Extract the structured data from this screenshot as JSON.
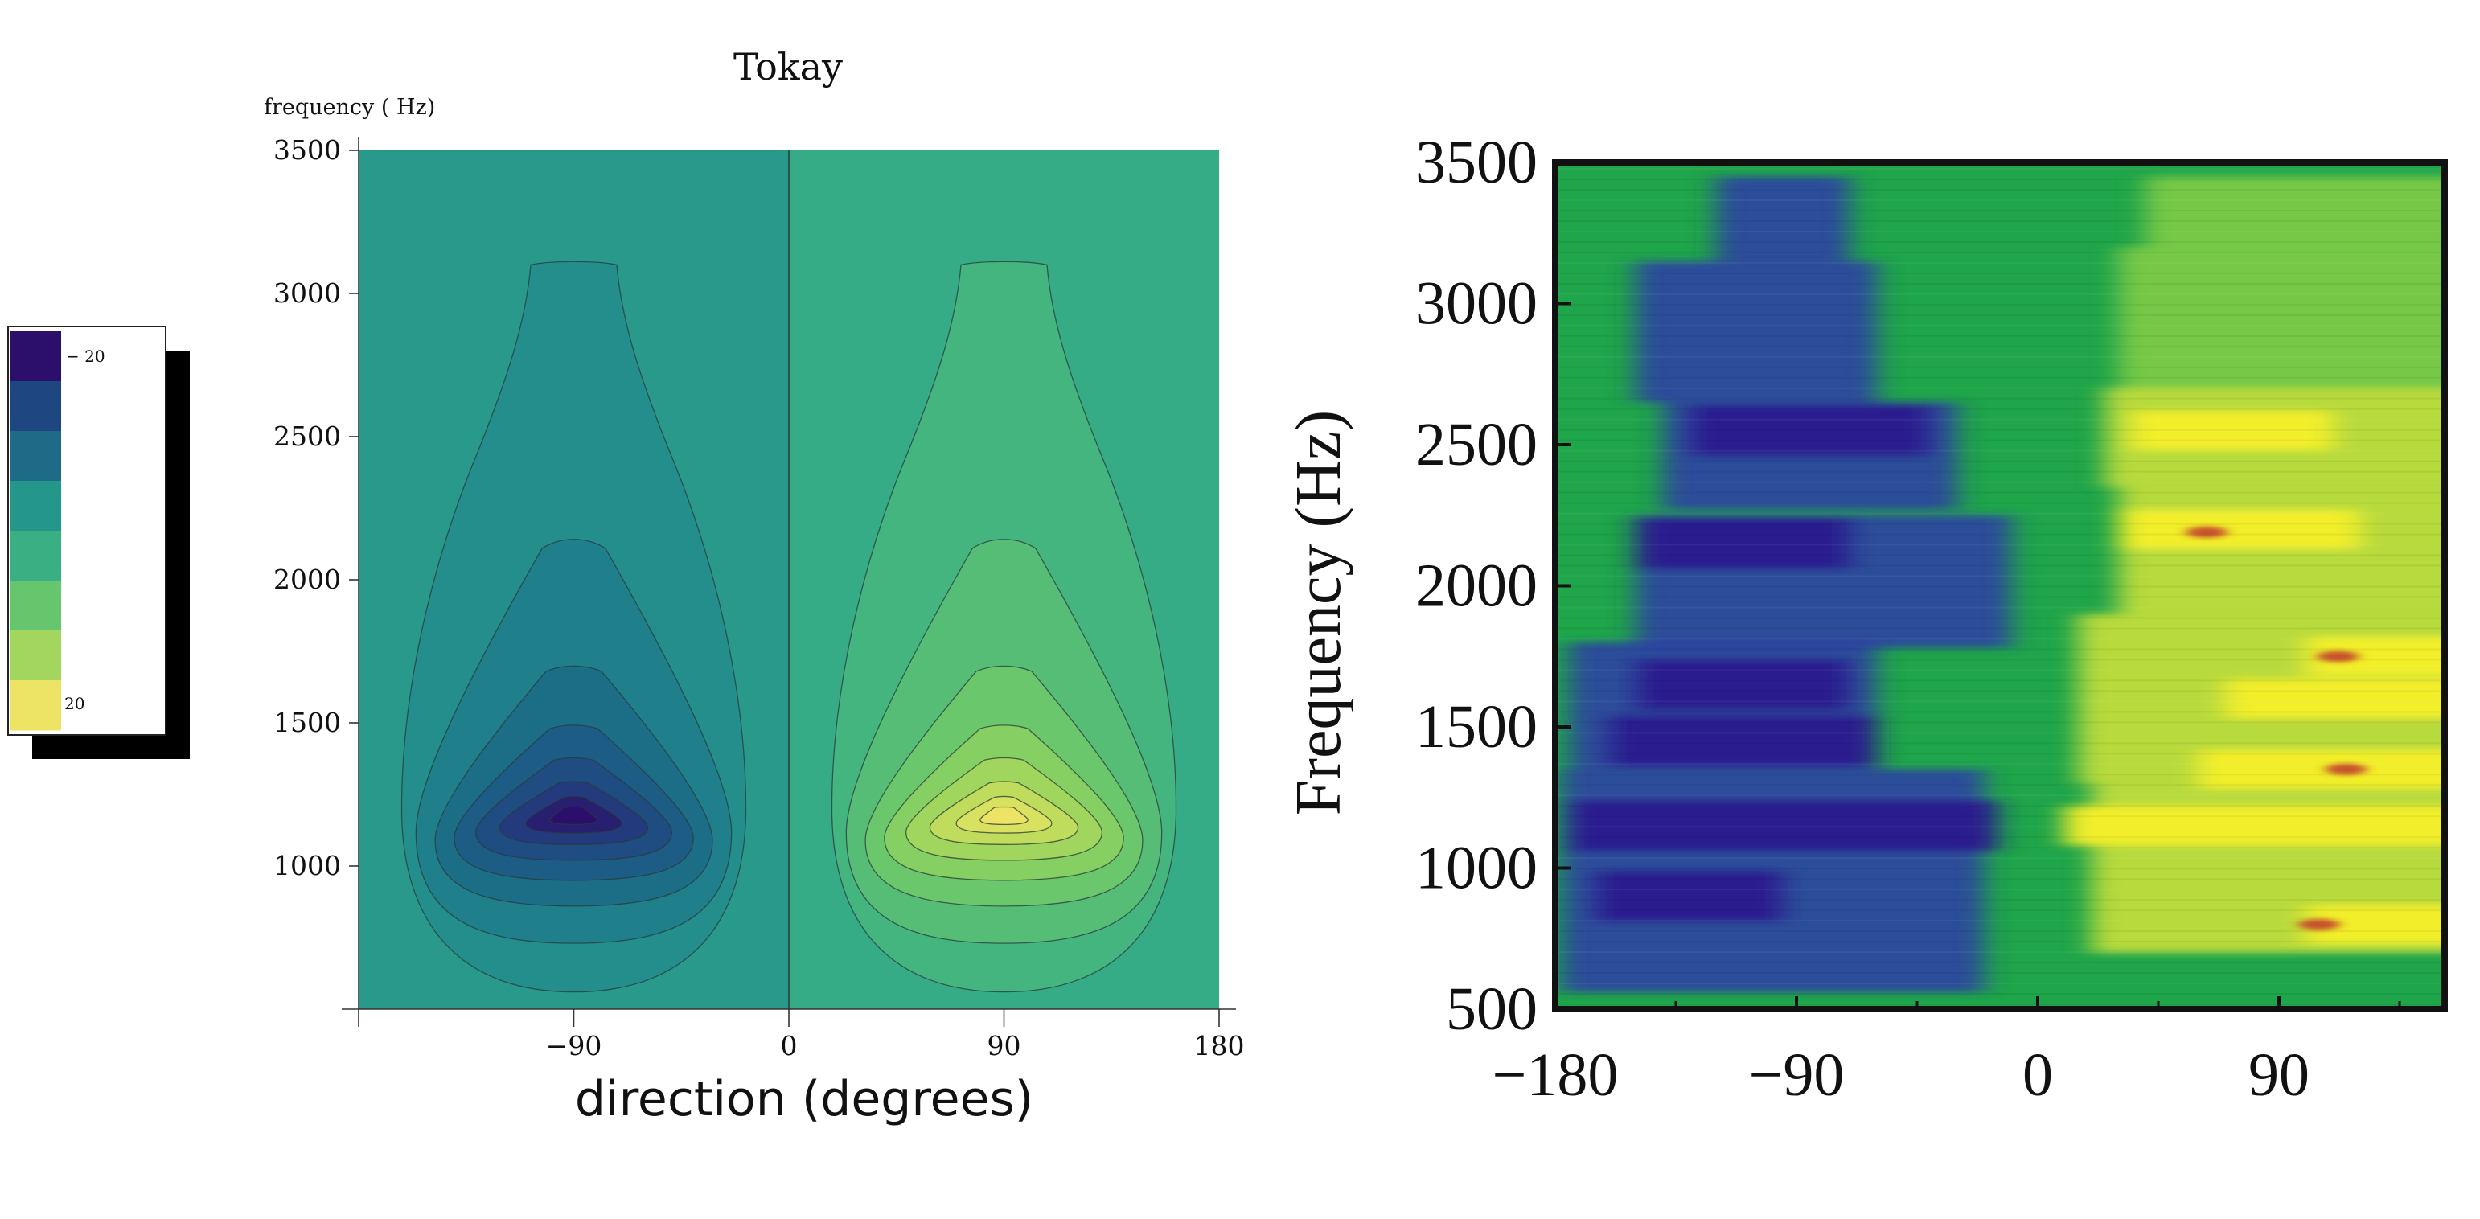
{
  "chart_data": [
    {
      "type": "contour",
      "title": "Tokay",
      "ylabel": "frequency ( Hz)",
      "xlabel": "direction (degrees)",
      "xlim": [
        -180,
        180
      ],
      "ylim": [
        500,
        3500
      ],
      "xticks": [
        -90,
        0,
        90,
        180
      ],
      "xtick_labels": [
        "−90",
        "0",
        "90",
        "180"
      ],
      "yticks": [
        1000,
        1500,
        2000,
        2500,
        3000,
        3500
      ],
      "ytick_labels": [
        "1000",
        "1500",
        "2000",
        "2500",
        "3000",
        "3500"
      ],
      "background_level": 0,
      "lobes": [
        {
          "center_direction": -90,
          "peak_frequency": 1180,
          "sign": -1,
          "peak_value": -20,
          "outer_extent_frequency": 3100
        },
        {
          "center_direction": 90,
          "peak_frequency": 1180,
          "sign": 1,
          "peak_value": 20,
          "outer_extent_frequency": 3100
        }
      ],
      "contour_levels": [
        -20,
        -15,
        -10,
        -5,
        0,
        5,
        10,
        15,
        20
      ],
      "colorbar": {
        "colors": [
          "#2b0f6b",
          "#1e4680",
          "#1d6b86",
          "#25968a",
          "#3aaf84",
          "#65c66e",
          "#a2d65f",
          "#ede465"
        ],
        "labels": [
          "− 20",
          "20"
        ]
      },
      "colormap": "viridis-like",
      "grid": false
    },
    {
      "type": "heatmap",
      "title": "",
      "ylabel": "Frequency (Hz)",
      "xlabel": "",
      "xlim": [
        -180,
        180
      ],
      "ylim": [
        500,
        3500
      ],
      "xticks": [
        -180,
        -90,
        0,
        90
      ],
      "xtick_labels": [
        "−180",
        "−90",
        "0",
        "90"
      ],
      "yticks": [
        500,
        1000,
        1500,
        2000,
        2500,
        3000,
        3500
      ],
      "ytick_labels": [
        "500",
        "1000",
        "1500",
        "2000",
        "2500",
        "3000",
        "3500"
      ],
      "description_of_pattern": {
        "negative_region_directions": [
          -180,
          0
        ],
        "positive_region_directions": [
          0,
          180
        ],
        "strong_negative_frequencies": [
          900,
          1150,
          1450,
          1650,
          2150,
          2550
        ],
        "strong_positive_frequencies": [
          800,
          1150,
          1350,
          1600,
          1750,
          2200,
          2550
        ]
      },
      "colors": {
        "neutral": "#1fa54a",
        "negative": "#2f3da8",
        "negative_strong": "#2a1f8f",
        "positive": "#c8e03a",
        "positive_strong": "#f2ee2a",
        "peak": "#c2402f"
      },
      "grid": false
    }
  ]
}
